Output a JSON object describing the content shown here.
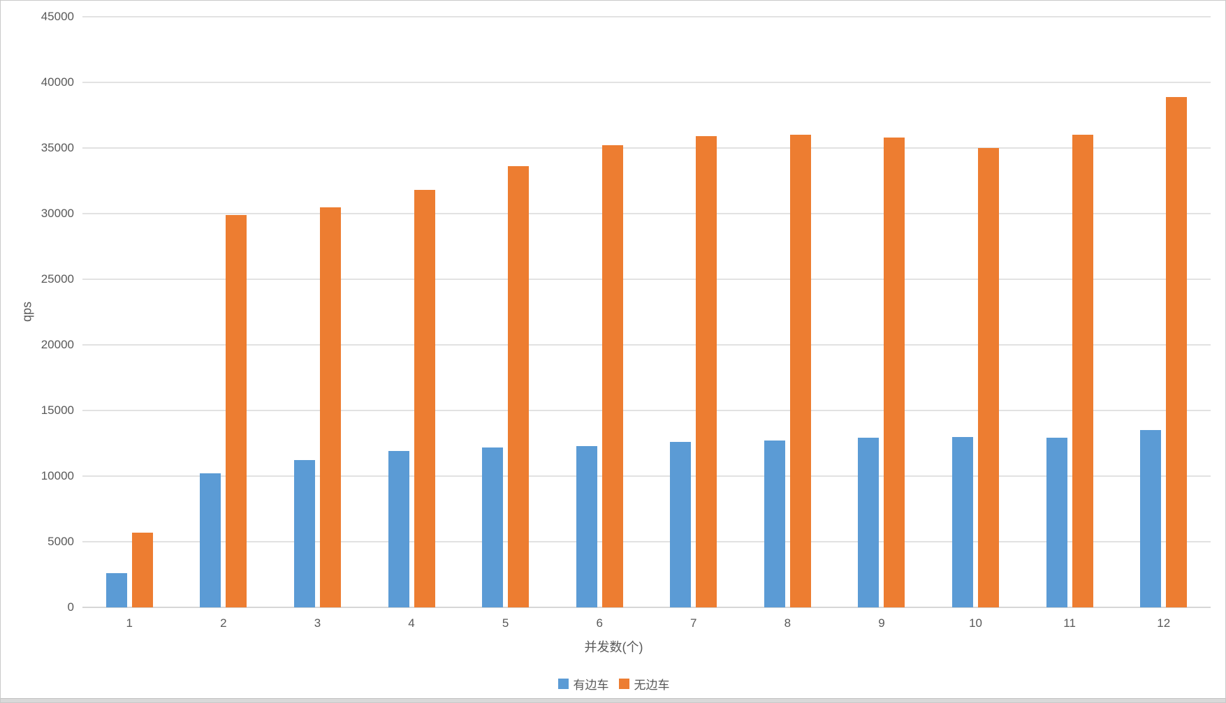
{
  "window": {
    "background": "#ffffff",
    "border_color": "#c9c9c9",
    "bottom_strip_color": "#d9d9d9"
  },
  "chart_data": {
    "type": "bar",
    "title": "",
    "xlabel": "并发数(个)",
    "ylabel": "qps",
    "categories": [
      "1",
      "2",
      "3",
      "4",
      "5",
      "6",
      "7",
      "8",
      "9",
      "10",
      "11",
      "12"
    ],
    "series": [
      {
        "name": "有边车",
        "color": "#5B9BD5",
        "values": [
          2600,
          10200,
          11200,
          11900,
          12200,
          12300,
          12600,
          12700,
          12900,
          13000,
          12900,
          13500
        ]
      },
      {
        "name": "无边车",
        "color": "#ED7D31",
        "values": [
          5700,
          29900,
          30500,
          31800,
          33600,
          35200,
          35900,
          36000,
          35800,
          35000,
          36000,
          38900
        ]
      }
    ],
    "ylim": [
      0,
      45000
    ],
    "ytick_step": 5000,
    "grid": true,
    "legend_position": "bottom",
    "text_color": "#595959",
    "gridline_color": "#e2e2e2"
  }
}
